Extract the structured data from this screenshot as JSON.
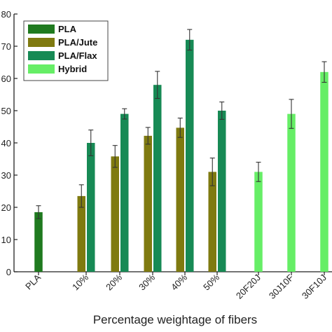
{
  "chart_data": {
    "type": "bar",
    "title": "",
    "xlabel": "Percentage weightage of fibers",
    "ylabel": "",
    "ylim": [
      0,
      80
    ],
    "yticks": [
      "0",
      "10",
      "20",
      "30",
      "40",
      "50",
      "60",
      "70",
      "80"
    ],
    "categories": [
      "PLA",
      "10%",
      "20%",
      "30%",
      "40%",
      "50%",
      "20F20J",
      "30J10F",
      "30F10J"
    ],
    "grid": false,
    "legend_position": "top-left",
    "series": [
      {
        "name": "PLA",
        "color": "#1f7a1f",
        "values": [
          18.5,
          null,
          null,
          null,
          null,
          null,
          null,
          null,
          null
        ],
        "errors": [
          2.0,
          null,
          null,
          null,
          null,
          null,
          null,
          null,
          null
        ]
      },
      {
        "name": "PLA/Jute",
        "color": "#7f7a10",
        "values": [
          null,
          23.5,
          35.8,
          42.2,
          44.7,
          31.0,
          null,
          null,
          null
        ],
        "errors": [
          null,
          3.5,
          3.4,
          2.6,
          3.0,
          4.3,
          null,
          null,
          null
        ]
      },
      {
        "name": "PLA/Flax",
        "color": "#178a55",
        "values": [
          null,
          40.0,
          49.0,
          58.0,
          72.0,
          50.0,
          null,
          null,
          null
        ],
        "errors": [
          null,
          4.0,
          1.6,
          4.2,
          3.2,
          2.7,
          null,
          null,
          null
        ]
      },
      {
        "name": "Hybrid",
        "color": "#66ee66",
        "values": [
          null,
          null,
          null,
          null,
          null,
          null,
          31.0,
          49.0,
          62.0
        ],
        "errors": [
          null,
          null,
          null,
          null,
          null,
          null,
          3.0,
          4.5,
          3.2
        ]
      }
    ]
  }
}
